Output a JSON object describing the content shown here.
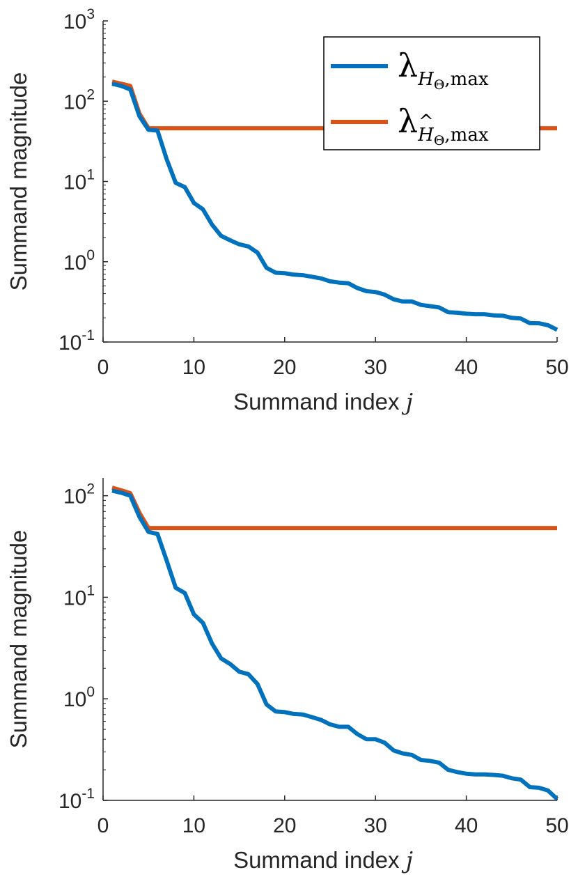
{
  "colors": {
    "series1": "#0072BD",
    "series2": "#D95319",
    "axis": "#262626"
  },
  "legend": {
    "series1": {
      "symbol": "λ",
      "sub_var": "H",
      "sub_subscript": "Θ",
      "sub_text": ",max"
    },
    "series2": {
      "symbol": "λ",
      "sub_var": "H",
      "sub_hat": "^",
      "sub_subscript": "Θ",
      "sub_text": ",max"
    }
  },
  "chart_data": [
    {
      "type": "line",
      "title": "",
      "xlabel": "Summand index",
      "xlabel_var": "j",
      "ylabel": "Summand magnitude",
      "yscale": "log",
      "xlim": [
        0,
        50
      ],
      "ylim": [
        0.1,
        1000
      ],
      "xticks": [
        0,
        10,
        20,
        30,
        40,
        50
      ],
      "yticks": [
        {
          "value": 0.1,
          "base": "10",
          "exp": "-1"
        },
        {
          "value": 1,
          "base": "10",
          "exp": "0"
        },
        {
          "value": 10,
          "base": "10",
          "exp": "1"
        },
        {
          "value": 100,
          "base": "10",
          "exp": "2"
        },
        {
          "value": 1000,
          "base": "10",
          "exp": "3"
        }
      ],
      "legend_position": "top-right",
      "grid": false,
      "series": [
        {
          "x": [
            1,
            2,
            3,
            4,
            5,
            6,
            7,
            8,
            9,
            10,
            11,
            12,
            13,
            14,
            15,
            16,
            17,
            18,
            19,
            20,
            21,
            22,
            23,
            24,
            25,
            26,
            27,
            28,
            29,
            30,
            31,
            32,
            33,
            34,
            35,
            36,
            37,
            38,
            39,
            40,
            41,
            42,
            43,
            44,
            45,
            46,
            47,
            48,
            49,
            50
          ],
          "values": [
            165,
            155,
            140,
            65,
            44,
            43,
            19,
            9.6,
            8.5,
            5.4,
            4.5,
            2.9,
            2.1,
            1.85,
            1.65,
            1.55,
            1.3,
            0.84,
            0.73,
            0.72,
            0.69,
            0.68,
            0.65,
            0.62,
            0.57,
            0.55,
            0.54,
            0.47,
            0.43,
            0.42,
            0.39,
            0.34,
            0.32,
            0.32,
            0.29,
            0.28,
            0.27,
            0.235,
            0.232,
            0.225,
            0.222,
            0.222,
            0.215,
            0.213,
            0.2,
            0.196,
            0.172,
            0.171,
            0.162,
            0.142
          ]
        },
        {
          "x": [
            1,
            2,
            3,
            4,
            5,
            6,
            7,
            8,
            9,
            10,
            11,
            12,
            13,
            14,
            15,
            16,
            17,
            18,
            19,
            20,
            21,
            22,
            23,
            24,
            25,
            26,
            27,
            28,
            29,
            30,
            31,
            32,
            33,
            34,
            35,
            36,
            37,
            38,
            39,
            40,
            41,
            42,
            43,
            44,
            45,
            46,
            47,
            48,
            49,
            50
          ],
          "values": [
            175,
            165,
            155,
            70,
            46,
            46,
            46,
            46,
            46,
            46,
            46,
            46,
            46,
            46,
            46,
            46,
            46,
            46,
            46,
            46,
            46,
            46,
            46,
            46,
            46,
            46,
            46,
            46,
            46,
            46,
            46,
            46,
            46,
            46,
            46,
            46,
            46,
            46,
            46,
            46,
            46,
            46,
            46,
            46,
            46,
            46,
            46,
            46,
            46,
            46
          ]
        }
      ]
    },
    {
      "type": "line",
      "title": "",
      "xlabel": "Summand index",
      "xlabel_var": "j",
      "ylabel": "Summand magnitude",
      "yscale": "log",
      "xlim": [
        0,
        50
      ],
      "ylim": [
        0.1,
        150
      ],
      "xticks": [
        0,
        10,
        20,
        30,
        40,
        50
      ],
      "yticks": [
        {
          "value": 0.1,
          "base": "10",
          "exp": "-1"
        },
        {
          "value": 1,
          "base": "10",
          "exp": "0"
        },
        {
          "value": 10,
          "base": "10",
          "exp": "1"
        },
        {
          "value": 100,
          "base": "10",
          "exp": "2"
        }
      ],
      "grid": false,
      "series": [
        {
          "x": [
            1,
            2,
            3,
            4,
            5,
            6,
            7,
            8,
            9,
            10,
            11,
            12,
            13,
            14,
            15,
            16,
            17,
            18,
            19,
            20,
            21,
            22,
            23,
            24,
            25,
            26,
            27,
            28,
            29,
            30,
            31,
            32,
            33,
            34,
            35,
            36,
            37,
            38,
            39,
            40,
            41,
            42,
            43,
            44,
            45,
            46,
            47,
            48,
            49,
            50
          ],
          "values": [
            112,
            107,
            100,
            62,
            44,
            42,
            23,
            12.4,
            11,
            6.8,
            5.6,
            3.5,
            2.5,
            2.2,
            1.85,
            1.75,
            1.4,
            0.88,
            0.75,
            0.74,
            0.71,
            0.7,
            0.66,
            0.62,
            0.56,
            0.53,
            0.53,
            0.45,
            0.4,
            0.4,
            0.37,
            0.31,
            0.29,
            0.28,
            0.25,
            0.245,
            0.235,
            0.2,
            0.19,
            0.183,
            0.18,
            0.18,
            0.178,
            0.175,
            0.165,
            0.16,
            0.135,
            0.133,
            0.125,
            0.103
          ]
        },
        {
          "x": [
            1,
            2,
            3,
            4,
            5,
            6,
            7,
            8,
            9,
            10,
            11,
            12,
            13,
            14,
            15,
            16,
            17,
            18,
            19,
            20,
            21,
            22,
            23,
            24,
            25,
            26,
            27,
            28,
            29,
            30,
            31,
            32,
            33,
            34,
            35,
            36,
            37,
            38,
            39,
            40,
            41,
            42,
            43,
            44,
            45,
            46,
            47,
            48,
            49,
            50
          ],
          "values": [
            120,
            113,
            106,
            68,
            48,
            48,
            48,
            48,
            48,
            48,
            48,
            48,
            48,
            48,
            48,
            48,
            48,
            48,
            48,
            48,
            48,
            48,
            48,
            48,
            48,
            48,
            48,
            48,
            48,
            48,
            48,
            48,
            48,
            48,
            48,
            48,
            48,
            48,
            48,
            48,
            48,
            48,
            48,
            48,
            48,
            48,
            48,
            48,
            48,
            48
          ]
        }
      ]
    }
  ]
}
